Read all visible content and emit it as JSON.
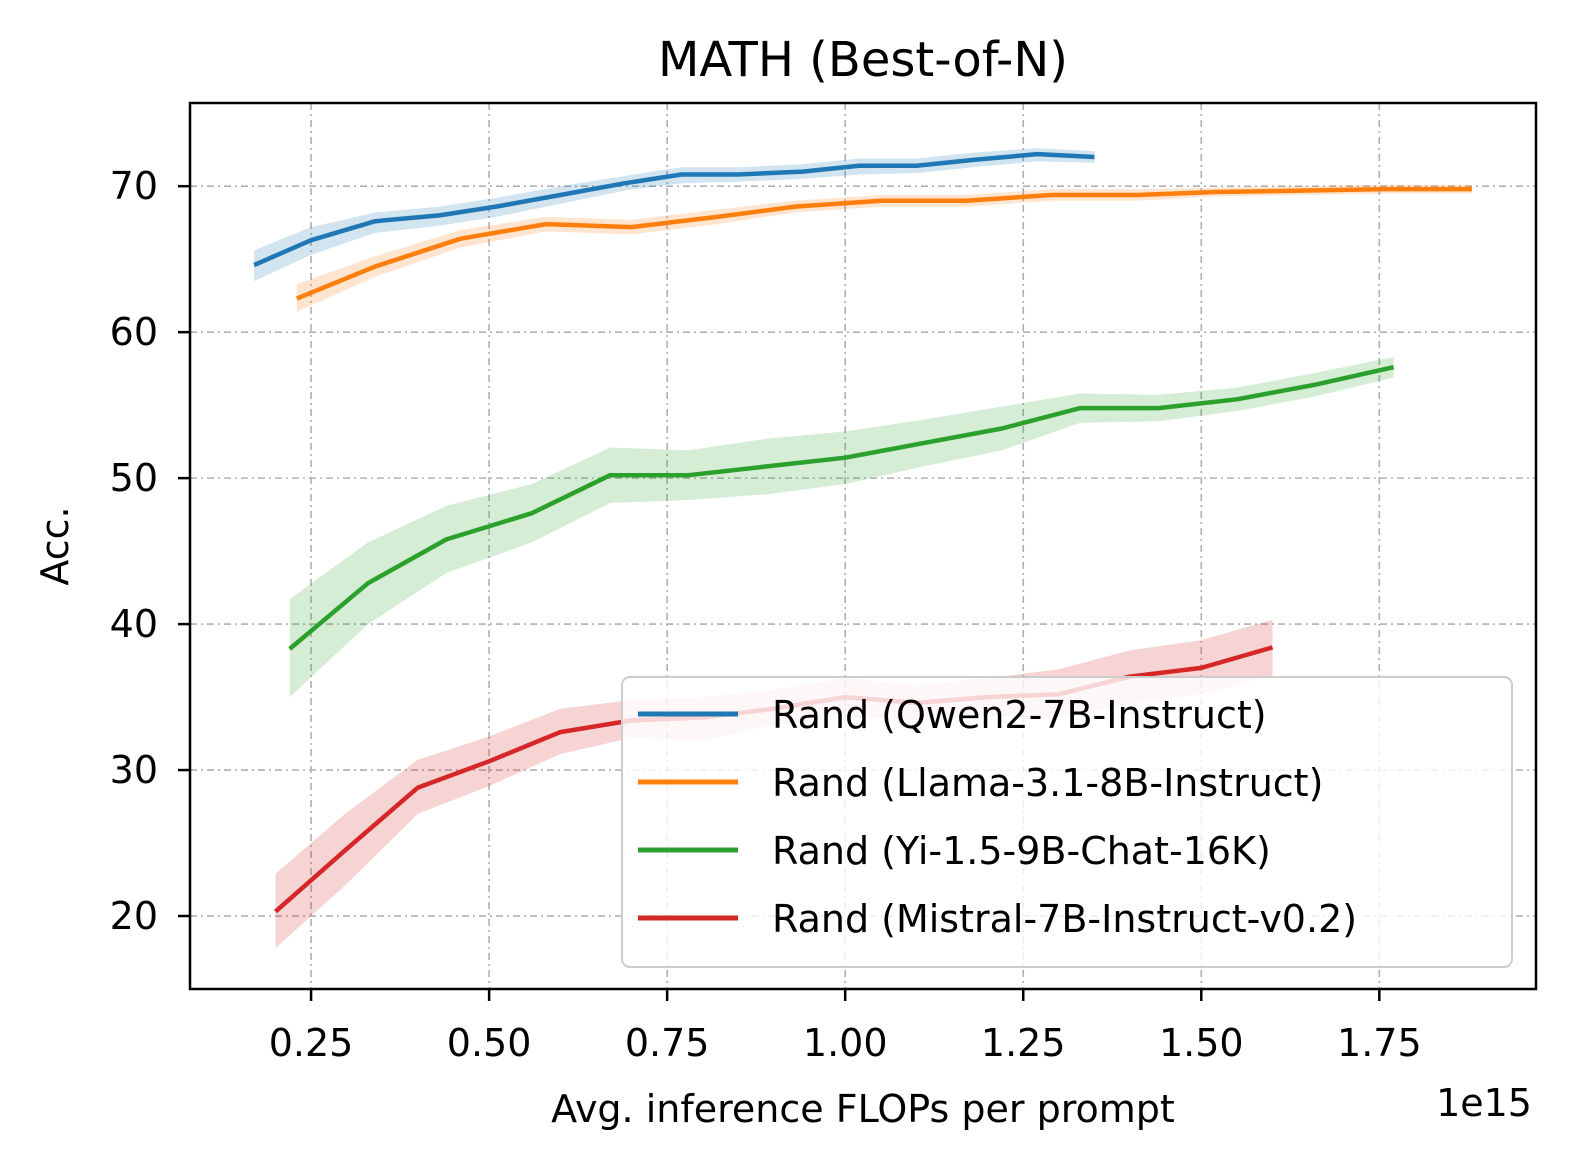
{
  "chart_data": {
    "type": "line",
    "title": "MATH (Best-of-N)",
    "xlabel": "Avg. inference FLOPs per prompt",
    "ylabel": "Acc.",
    "x_offset_label": "1e15",
    "xlim": [
      0.08,
      1.97
    ],
    "ylim": [
      15.0,
      75.7
    ],
    "xticks": [
      0.25,
      0.5,
      0.75,
      1.0,
      1.25,
      1.5,
      1.75
    ],
    "xtick_labels": [
      "0.25",
      "0.50",
      "0.75",
      "1.00",
      "1.25",
      "1.50",
      "1.75"
    ],
    "yticks": [
      20,
      30,
      40,
      50,
      60,
      70
    ],
    "ytick_labels": [
      "20",
      "30",
      "40",
      "50",
      "60",
      "70"
    ],
    "grid": true,
    "legend_position": "lower-right",
    "series": [
      {
        "name": "Rand (Qwen2-7B-Instruct)",
        "color": "#1f77b4",
        "x": [
          0.17,
          0.25,
          0.34,
          0.43,
          0.51,
          0.6,
          0.69,
          0.77,
          0.85,
          0.94,
          1.02,
          1.1,
          1.18,
          1.27,
          1.35
        ],
        "y": [
          64.6,
          66.3,
          67.6,
          68.0,
          68.6,
          69.4,
          70.2,
          70.8,
          70.8,
          71.0,
          71.4,
          71.4,
          71.8,
          72.2,
          72.0
        ],
        "lower": [
          63.5,
          65.3,
          66.8,
          67.3,
          67.9,
          68.8,
          69.7,
          70.2,
          70.3,
          70.5,
          70.8,
          70.9,
          71.3,
          71.7,
          71.6
        ],
        "upper": [
          65.6,
          67.2,
          68.2,
          68.6,
          69.2,
          70.0,
          70.7,
          71.3,
          71.3,
          71.5,
          71.9,
          71.9,
          72.3,
          72.6,
          72.4
        ]
      },
      {
        "name": "Rand (Llama-3.1-8B-Instruct)",
        "color": "#ff7f0e",
        "x": [
          0.23,
          0.34,
          0.46,
          0.58,
          0.7,
          0.82,
          0.93,
          1.05,
          1.17,
          1.29,
          1.41,
          1.52,
          1.64,
          1.76,
          1.88
        ],
        "y": [
          62.3,
          64.5,
          66.4,
          67.4,
          67.2,
          67.9,
          68.6,
          69.0,
          69.0,
          69.4,
          69.4,
          69.6,
          69.7,
          69.8,
          69.8
        ],
        "lower": [
          61.4,
          63.8,
          65.8,
          66.9,
          66.7,
          67.4,
          68.2,
          68.6,
          68.6,
          69.0,
          69.0,
          69.3,
          69.4,
          69.5,
          69.5
        ],
        "upper": [
          63.3,
          65.2,
          67.0,
          67.9,
          67.7,
          68.4,
          69.0,
          69.4,
          69.4,
          69.8,
          69.8,
          69.9,
          70.0,
          70.1,
          70.1
        ]
      },
      {
        "name": "Rand (Yi-1.5-9B-Chat-16K)",
        "color": "#2ca02c",
        "x": [
          0.22,
          0.33,
          0.44,
          0.56,
          0.67,
          0.78,
          0.89,
          1.0,
          1.11,
          1.22,
          1.33,
          1.44,
          1.55,
          1.66,
          1.77
        ],
        "y": [
          38.3,
          42.8,
          45.8,
          47.6,
          50.2,
          50.2,
          50.8,
          51.4,
          52.4,
          53.4,
          54.8,
          54.8,
          55.4,
          56.4,
          57.6
        ],
        "lower": [
          35.0,
          40.0,
          43.5,
          45.6,
          48.3,
          48.5,
          48.9,
          49.6,
          50.8,
          51.9,
          53.8,
          53.9,
          54.6,
          55.6,
          56.9
        ],
        "upper": [
          41.7,
          45.6,
          48.1,
          49.6,
          52.1,
          51.9,
          52.7,
          53.2,
          54.0,
          54.9,
          55.8,
          55.7,
          56.2,
          57.2,
          58.3
        ]
      },
      {
        "name": "Rand (Mistral-7B-Instruct-v0.2)",
        "color": "#d62728",
        "x": [
          0.2,
          0.3,
          0.4,
          0.5,
          0.6,
          0.7,
          0.8,
          0.9,
          1.0,
          1.1,
          1.2,
          1.3,
          1.4,
          1.5,
          1.6
        ],
        "y": [
          20.3,
          24.6,
          28.8,
          30.6,
          32.6,
          33.4,
          33.6,
          34.2,
          35.0,
          34.6,
          35.0,
          35.2,
          36.4,
          37.0,
          38.4
        ],
        "lower": [
          17.8,
          22.2,
          27.0,
          28.9,
          31.1,
          32.2,
          32.0,
          33.1,
          33.7,
          33.4,
          33.7,
          33.6,
          34.5,
          35.2,
          36.5
        ],
        "upper": [
          22.9,
          27.1,
          30.7,
          32.3,
          34.2,
          34.8,
          35.0,
          35.5,
          36.3,
          35.8,
          36.3,
          36.9,
          38.2,
          38.9,
          40.3
        ]
      }
    ]
  }
}
